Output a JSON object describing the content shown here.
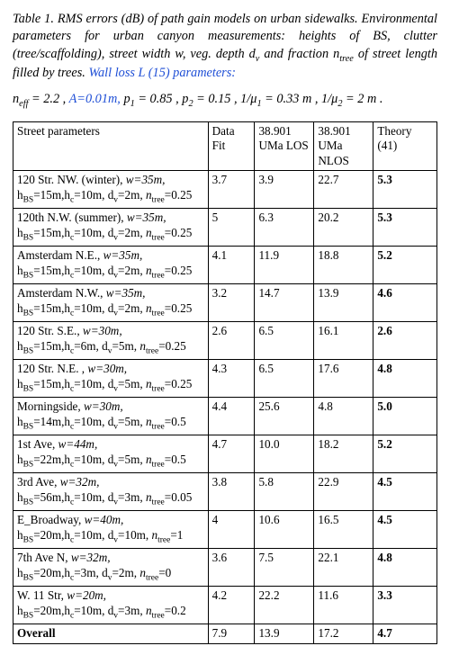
{
  "caption": {
    "title_prefix": "Table 1. ",
    "body": "RMS errors (dB) of path gain models on urban sidewalks. Environmental parameters for urban canyon measurements: heights of BS, clutter (tree/scaffolding), street width w, veg. depth d",
    "body_sub": "v",
    "body2": " and fraction n",
    "body2_sub": "tree",
    "body3": "  of street length filled by trees. ",
    "blue_tail": "Wall loss L (15) parameters:"
  },
  "params": {
    "n_label": "n",
    "n_sub": "eff",
    "n_val": " = 2.2 , ",
    "A_text": "A=0.01m, ",
    "p1": "p",
    "p1_sub": "1",
    "p1_val": " = 0.85 , ",
    "p2": "p",
    "p2_sub": "2",
    "p2_val": " = 0.15 , ",
    "mu1_lhs": "1/",
    "mu1_sym": "μ",
    "mu1_sub": "1",
    "mu1_val": " = 0.33 m , ",
    "mu2_lhs": "1/",
    "mu2_sym": "μ",
    "mu2_sub": "2",
    "mu2_val": " = 2 m ."
  },
  "table": {
    "headers": {
      "c0": "Street parameters",
      "c1": "Data Fit",
      "c2": "38.901 UMa LOS",
      "c3": "38.901 UMa NLOS",
      "c4": "Theory (41)"
    },
    "rows": [
      {
        "name": "120 Str. NW. (winter), ",
        "w": "w=35m,",
        "hbs": "15m",
        "hc": "10m",
        "dv": "2m",
        "ntree": "0.25",
        "fit": "3.7",
        "los": "3.9",
        "nlos": "22.7",
        "th": "5.3"
      },
      {
        "name": "120th N.W. (summer), ",
        "w": "w=35m,",
        "hbs": "15m",
        "hc": "10m",
        "dv": "2m",
        "ntree": "0.25",
        "fit": "5",
        "los": "6.3",
        "nlos": "20.2",
        "th": "5.3"
      },
      {
        "name": "Amsterdam N.E., ",
        "w": "w=35m,",
        "hbs": "15m",
        "hc": "10m",
        "dv": "2m",
        "ntree": "0.25",
        "fit": "4.1",
        "los": "11.9",
        "nlos": "18.8",
        "th": "5.2"
      },
      {
        "name": "Amsterdam N.W., ",
        "w": "w=35m,",
        "hbs": "15m",
        "hc": "10m",
        "dv": "2m",
        "ntree": "0.25",
        "fit": "3.2",
        "los": "14.7",
        "nlos": "13.9",
        "th": "4.6"
      },
      {
        "name": "120 Str. S.E., ",
        "w": "w=30m,",
        "hbs": "15m",
        "hc": "6m",
        "dv": "5m",
        "ntree": "0.25",
        "fit": "2.6",
        "los": "6.5",
        "nlos": "16.1",
        "th": "2.6"
      },
      {
        "name": "120 Str. N.E. , ",
        "w": "w=30m,",
        "hbs": "15m",
        "hc": "10m",
        "dv": "5m",
        "ntree": "0.25",
        "fit": "4.3",
        "los": "6.5",
        "nlos": "17.6",
        "th": "4.8"
      },
      {
        "name": "Morningside, ",
        "w": "w=30m,",
        "hbs": "14m",
        "hc": "10m",
        "dv": "5m",
        "ntree": "0.5",
        "fit": "4.4",
        "los": "25.6",
        "nlos": "4.8",
        "th": "5.0"
      },
      {
        "name": "1st Ave, ",
        "w": "w=44m,",
        "hbs": "22m",
        "hc": "10m",
        "dv": "5m",
        "ntree": "0.5",
        "fit": "4.7",
        "los": "10.0",
        "nlos": "18.2",
        "th": "5.2"
      },
      {
        "name": "3rd Ave, ",
        "w": "w=32m,",
        "hbs": "56m",
        "hc": "10m",
        "dv": "3m",
        "ntree": "0.05",
        "fit": "3.8",
        "los": "5.8",
        "nlos": "22.9",
        "th": "4.5"
      },
      {
        "name": "E_Broadway, ",
        "w": "w=40m,",
        "hbs": "20m",
        "hc": "10m",
        "dv": "10m",
        "ntree": "1",
        "fit": "4",
        "los": "10.6",
        "nlos": "16.5",
        "th": "4.5"
      },
      {
        "name": "7th  Ave N, ",
        "w": "w=32m,",
        "hbs": "20m",
        "hc": "3m",
        "dv": "2m",
        "ntree": "0",
        "fit": "3.6",
        "los": "7.5",
        "nlos": "22.1",
        "th": "4.8"
      },
      {
        "name": "W. 11 Str, ",
        "w": "w=20m,",
        "hbs": "20m",
        "hc": "10m",
        "dv": "3m",
        "ntree": "0.2",
        "fit": "4.2",
        "los": "22.2",
        "nlos": "11.6",
        "th": "3.3"
      }
    ],
    "overall": {
      "label": "Overall",
      "fit": "7.9",
      "los": "13.9",
      "nlos": "17.2",
      "th": "4.7"
    }
  }
}
